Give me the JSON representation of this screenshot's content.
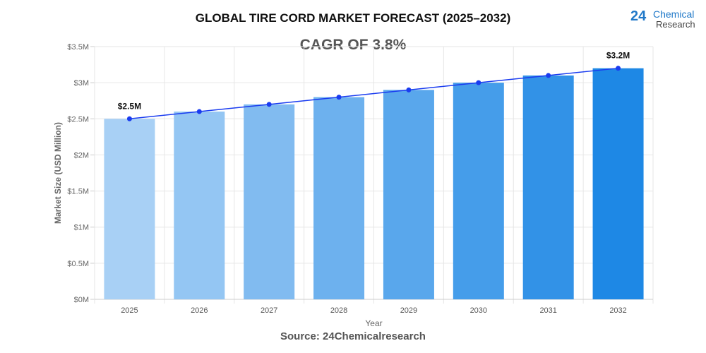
{
  "title": "GLOBAL TIRE CORD MARKET FORECAST (2025–2032)",
  "subtitle": "CAGR OF 3.8%",
  "source": "Source: 24Chemicalresearch",
  "logo": {
    "number": "24",
    "line1": "Chemical",
    "line2": "Research"
  },
  "chart_data": {
    "type": "bar",
    "categories": [
      "2025",
      "2026",
      "2027",
      "2028",
      "2029",
      "2030",
      "2031",
      "2032"
    ],
    "values": [
      2.5,
      2.6,
      2.7,
      2.8,
      2.9,
      3.0,
      3.1,
      3.2
    ],
    "line_values": [
      2.5,
      2.6,
      2.7,
      2.8,
      2.9,
      3.0,
      3.1,
      3.2
    ],
    "xlabel": "Year",
    "ylabel": "Market Size (USD Million)",
    "ylim": [
      0,
      3.5
    ],
    "yticks": [
      0,
      0.5,
      1,
      1.5,
      2,
      2.5,
      3,
      3.5
    ],
    "ytick_labels": [
      "$0M",
      "$0.5M",
      "$1M",
      "$1.5M",
      "$2M",
      "$2.5M",
      "$3M",
      "$3.5M"
    ],
    "data_labels": [
      {
        "index": 0,
        "text": "$2.5M"
      },
      {
        "index": 7,
        "text": "$3.2M"
      }
    ],
    "grid": true,
    "colors": {
      "bar_start": "#a8d0f5",
      "bar_end": "#1e88e5",
      "line": "#1a3cf0"
    }
  }
}
